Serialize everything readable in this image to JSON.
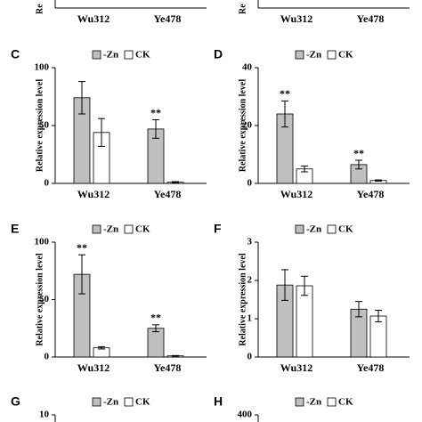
{
  "chart_data": [
    {
      "type": "bar",
      "categories": [
        "Wu312",
        "Ye478"
      ],
      "y_label": "Re"
    },
    {
      "type": "bar",
      "categories": [
        "Wu312",
        "Ye478"
      ],
      "y_label": "Re"
    },
    {
      "type": "bar",
      "panel": "C",
      "categories": [
        "Wu312",
        "Ye478"
      ],
      "series": [
        {
          "name": "-Zn",
          "color": "#bfbfbf",
          "values": [
            74,
            47
          ],
          "errors": [
            14,
            8
          ]
        },
        {
          "name": "CK",
          "color": "#ffffff",
          "values": [
            44,
            1
          ],
          "errors": [
            12,
            0.5
          ]
        }
      ],
      "y_label": "Relative expression level",
      "ylim": [
        0,
        100
      ],
      "yticks": [
        0,
        50,
        100
      ],
      "annotations": [
        {
          "text": "**",
          "series": 0,
          "index": 1
        }
      ]
    },
    {
      "type": "bar",
      "panel": "D",
      "categories": [
        "Wu312",
        "Ye478"
      ],
      "series": [
        {
          "name": "-Zn",
          "color": "#bfbfbf",
          "values": [
            24,
            6.5
          ],
          "errors": [
            4.5,
            1.5
          ]
        },
        {
          "name": "CK",
          "color": "#ffffff",
          "values": [
            5,
            1
          ],
          "errors": [
            1,
            0.2
          ]
        }
      ],
      "y_label": "Relative expression level",
      "ylim": [
        0,
        40
      ],
      "yticks": [
        0,
        20,
        40
      ],
      "annotations": [
        {
          "text": "**",
          "series": 0,
          "index": 0
        },
        {
          "text": "**",
          "series": 0,
          "index": 1
        }
      ]
    },
    {
      "type": "bar",
      "panel": "E",
      "categories": [
        "Wu312",
        "Ye478"
      ],
      "series": [
        {
          "name": "-Zn",
          "color": "#bfbfbf",
          "values": [
            72,
            25
          ],
          "errors": [
            17,
            3
          ]
        },
        {
          "name": "CK",
          "color": "#ffffff",
          "values": [
            8,
            1
          ],
          "errors": [
            1,
            0.3
          ]
        }
      ],
      "y_label": "Relative expression level",
      "ylim": [
        0,
        100
      ],
      "yticks": [
        0,
        50,
        100
      ],
      "annotations": [
        {
          "text": "**",
          "series": 0,
          "index": 0
        },
        {
          "text": "**",
          "series": 0,
          "index": 1
        }
      ]
    },
    {
      "type": "bar",
      "panel": "F",
      "categories": [
        "Wu312",
        "Ye478"
      ],
      "series": [
        {
          "name": "-Zn",
          "color": "#bfbfbf",
          "values": [
            1.88,
            1.25
          ],
          "errors": [
            0.4,
            0.2
          ]
        },
        {
          "name": "CK",
          "color": "#ffffff",
          "values": [
            1.86,
            1.07
          ],
          "errors": [
            0.25,
            0.15
          ]
        }
      ],
      "y_label": "Relative expression level",
      "ylim": [
        0,
        3
      ],
      "yticks": [
        0,
        1,
        2,
        3
      ]
    },
    {
      "type": "bar",
      "panel": "G",
      "series": [
        {
          "name": "-Zn",
          "color": "#bfbfbf"
        },
        {
          "name": "CK",
          "color": "#ffffff"
        }
      ],
      "yticks": [
        10
      ]
    },
    {
      "type": "bar",
      "panel": "H",
      "series": [
        {
          "name": "-Zn",
          "color": "#bfbfbf"
        },
        {
          "name": "CK",
          "color": "#ffffff"
        }
      ],
      "yticks": [
        400
      ]
    }
  ]
}
